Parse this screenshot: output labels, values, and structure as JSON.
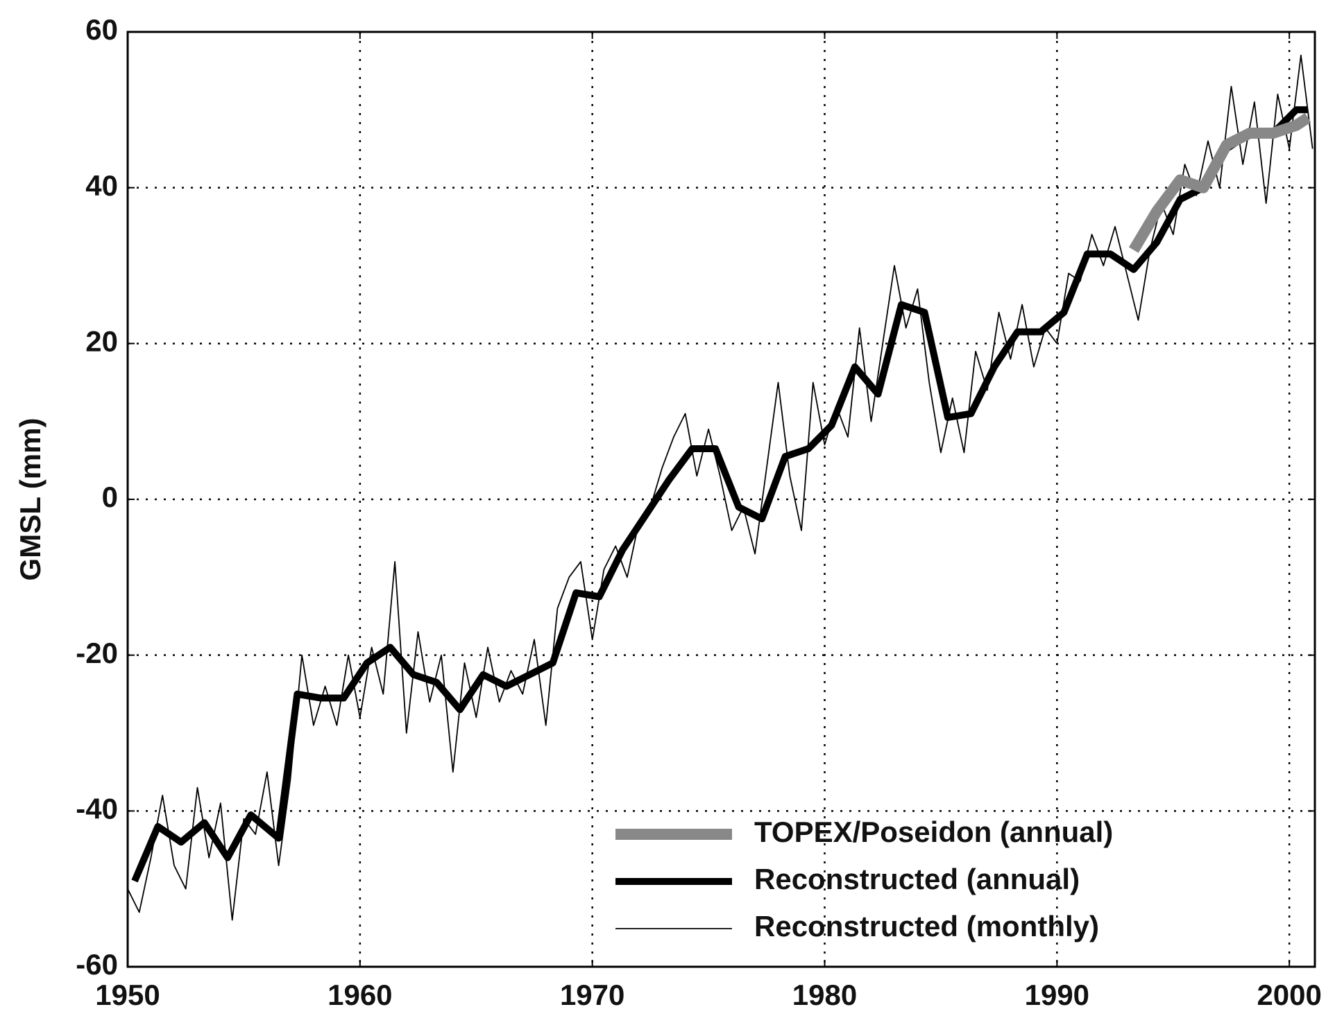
{
  "chart_data": {
    "type": "line",
    "y_label": "GMSL (mm)",
    "xlim": [
      1950,
      2001.1
    ],
    "ylim": [
      -60,
      60
    ],
    "xticks": [
      1950,
      1960,
      1970,
      1980,
      1990,
      2000
    ],
    "yticks": [
      -60,
      -40,
      -20,
      0,
      20,
      40,
      60
    ],
    "grid": true,
    "legend": "lower right",
    "series": [
      {
        "name": "TOPEX/Poseidon (annual)",
        "color": "#888888",
        "x": [
          1993.3,
          1994.3,
          1995.3,
          1996.3,
          1997.3,
          1998.3,
          1999.3,
          2000.3,
          2000.8
        ],
        "values": [
          32,
          37,
          41,
          40,
          45.5,
          47,
          47,
          48,
          49
        ]
      },
      {
        "name": "Reconstructed (annual)",
        "color": "#000000",
        "x": [
          1950.3,
          1951.3,
          1952.3,
          1953.3,
          1954.3,
          1955.3,
          1956.5,
          1957.3,
          1958.3,
          1959.3,
          1960.3,
          1961.3,
          1962.3,
          1963.3,
          1964.3,
          1965.3,
          1966.3,
          1967.3,
          1968.3,
          1969.3,
          1970.3,
          1971.3,
          1972.3,
          1973.3,
          1974.3,
          1975.3,
          1976.3,
          1977.3,
          1978.3,
          1979.3,
          1980.3,
          1981.3,
          1982.3,
          1983.3,
          1984.3,
          1985.3,
          1986.3,
          1987.3,
          1988.3,
          1989.3,
          1990.3,
          1991.3,
          1992.3,
          1993.3,
          1994.3,
          1995.3,
          1996.3,
          1997.3,
          1998.3,
          1999.3,
          2000.3,
          2000.8
        ],
        "values": [
          -49,
          -42,
          -44,
          -41.5,
          -46,
          -40.5,
          -43.5,
          -25,
          -25.5,
          -25.5,
          -21,
          -19,
          -22.5,
          -23.5,
          -27,
          -22.5,
          -24,
          -22.5,
          -21,
          -12,
          -12.5,
          -6.5,
          -2,
          2.5,
          6.5,
          6.5,
          -1,
          -2.5,
          5.5,
          6.5,
          9.5,
          17,
          13.5,
          25,
          24,
          10.5,
          11,
          17,
          21.5,
          21.5,
          24,
          31.5,
          31.5,
          29.5,
          33,
          38.5,
          40,
          45,
          47,
          47,
          50,
          50
        ]
      },
      {
        "name": "Reconstructed (monthly)",
        "color": "#000000",
        "x": [
          1950.0,
          1950.5,
          1951.0,
          1951.5,
          1952.0,
          1952.5,
          1953.0,
          1953.5,
          1954.0,
          1954.5,
          1955.0,
          1955.5,
          1956.0,
          1956.5,
          1957.0,
          1957.5,
          1958.0,
          1958.5,
          1959.0,
          1959.5,
          1960.0,
          1960.5,
          1961.0,
          1961.5,
          1962.0,
          1962.5,
          1963.0,
          1963.5,
          1964.0,
          1964.5,
          1965.0,
          1965.5,
          1966.0,
          1966.5,
          1967.0,
          1967.5,
          1968.0,
          1968.5,
          1969.0,
          1969.5,
          1970.0,
          1970.5,
          1971.0,
          1971.5,
          1972.0,
          1972.5,
          1973.0,
          1973.5,
          1974.0,
          1974.5,
          1975.0,
          1975.5,
          1976.0,
          1976.5,
          1977.0,
          1977.5,
          1978.0,
          1978.5,
          1979.0,
          1979.5,
          1980.0,
          1980.5,
          1981.0,
          1981.5,
          1982.0,
          1982.5,
          1983.0,
          1983.5,
          1984.0,
          1984.5,
          1985.0,
          1985.5,
          1986.0,
          1986.5,
          1987.0,
          1987.5,
          1988.0,
          1988.5,
          1989.0,
          1989.5,
          1990.0,
          1990.5,
          1991.0,
          1991.5,
          1992.0,
          1992.5,
          1993.0,
          1993.5,
          1994.0,
          1994.5,
          1995.0,
          1995.5,
          1996.0,
          1996.5,
          1997.0,
          1997.5,
          1998.0,
          1998.5,
          1999.0,
          1999.5,
          2000.0,
          2000.5,
          2001.0
        ],
        "values": [
          -50,
          -53,
          -46,
          -38,
          -47,
          -50,
          -37,
          -46,
          -39,
          -54,
          -41,
          -43,
          -35,
          -47,
          -36,
          -20,
          -29,
          -24,
          -29,
          -20,
          -28,
          -19,
          -25,
          -8,
          -30,
          -17,
          -26,
          -20,
          -35,
          -21,
          -28,
          -19,
          -26,
          -22,
          -25,
          -18,
          -29,
          -14,
          -10,
          -8,
          -18,
          -9,
          -6,
          -10,
          -3,
          -1,
          4,
          8,
          11,
          3,
          9,
          3,
          -4,
          -1,
          -7,
          4,
          15,
          3,
          -4,
          15,
          7,
          12,
          8,
          22,
          10,
          20,
          30,
          22,
          27,
          15,
          6,
          13,
          6,
          19,
          14,
          24,
          18,
          25,
          17,
          22,
          20,
          29,
          28,
          34,
          30,
          35,
          29,
          23,
          32,
          38,
          34,
          43,
          39,
          46,
          40,
          53,
          43,
          51,
          38,
          52,
          45,
          57,
          45
        ]
      }
    ]
  }
}
